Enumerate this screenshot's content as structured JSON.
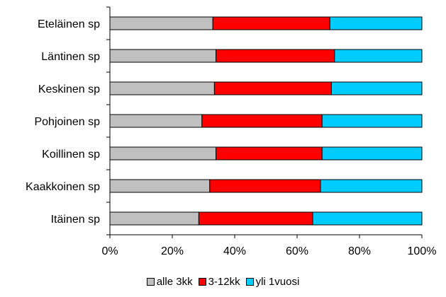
{
  "chart_data": {
    "type": "bar",
    "orientation": "horizontal",
    "stacked": true,
    "categories": [
      "Eteläinen sp",
      "Läntinen sp",
      "Keskinen sp",
      "Pohjoinen sp",
      "Koillinen sp",
      "Kaakkoinen sp",
      "Itäinen sp"
    ],
    "series": [
      {
        "name": "alle 3kk",
        "color": "#c0c0c0",
        "values": [
          33,
          34,
          33.5,
          29.5,
          34,
          32,
          28.5
        ]
      },
      {
        "name": "3-12kk",
        "color": "#ff0000",
        "values": [
          37.5,
          38,
          37.5,
          38.5,
          34,
          35.5,
          36.5
        ]
      },
      {
        "name": "yli 1vuosi",
        "color": "#00ccff",
        "values": [
          29.5,
          28,
          29,
          32,
          32,
          32.5,
          35
        ]
      }
    ],
    "x_ticks": [
      "0%",
      "20%",
      "40%",
      "60%",
      "80%",
      "100%"
    ],
    "xlim": [
      0,
      100
    ],
    "grid": false,
    "legend": "bottom"
  }
}
